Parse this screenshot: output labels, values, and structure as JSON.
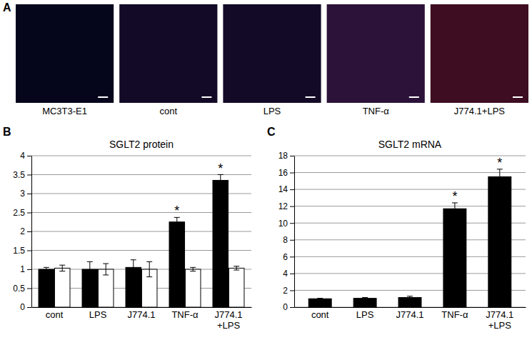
{
  "image_panel": {
    "label": "A",
    "captions": [
      "MC3T3-E1",
      "cont",
      "LPS",
      "TNF-α",
      "J774.1+LPS"
    ]
  },
  "chart_data": [
    {
      "type": "bar",
      "label": "B",
      "title": "SGLT2 protein",
      "categories": [
        "cont",
        "LPS",
        "J774.1",
        "TNF-α",
        "J774.1 +LPS"
      ],
      "series": [
        {
          "color": "#000000",
          "values": [
            1.0,
            1.0,
            1.05,
            2.25,
            3.35
          ],
          "errors": [
            0.05,
            0.2,
            0.2,
            0.12,
            0.15
          ]
        },
        {
          "color": "#ffffff",
          "values": [
            1.03,
            1.0,
            1.0,
            1.0,
            1.03
          ],
          "errors": [
            0.08,
            0.15,
            0.2,
            0.05,
            0.05
          ]
        }
      ],
      "ylim": [
        0,
        4
      ],
      "yticks": [
        0,
        0.5,
        1,
        1.5,
        2,
        2.5,
        3,
        3.5,
        4
      ],
      "grid": true,
      "annotations": [
        {
          "text": "*",
          "series": 0,
          "index": 3
        },
        {
          "text": "*",
          "series": 0,
          "index": 4
        }
      ]
    },
    {
      "type": "bar",
      "label": "C",
      "title": "SGLT2 mRNA",
      "categories": [
        "cont",
        "LPS",
        "J774.1",
        "TNF-α",
        "J774.1 +LPS"
      ],
      "series": [
        {
          "color": "#000000",
          "values": [
            1.0,
            1.05,
            1.15,
            11.7,
            15.5
          ],
          "errors": [
            0.05,
            0.1,
            0.15,
            0.7,
            0.9
          ]
        }
      ],
      "ylim": [
        0,
        18
      ],
      "yticks": [
        0,
        2,
        4,
        6,
        8,
        10,
        12,
        14,
        16,
        18
      ],
      "grid": true,
      "annotations": [
        {
          "text": "*",
          "series": 0,
          "index": 3
        },
        {
          "text": "*",
          "series": 0,
          "index": 4
        }
      ]
    }
  ]
}
